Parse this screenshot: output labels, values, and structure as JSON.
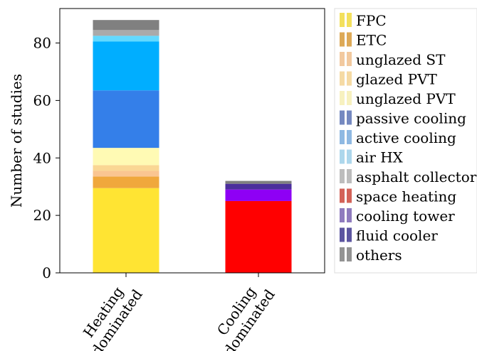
{
  "chart_data": {
    "type": "bar",
    "stacked": true,
    "categories": [
      "Heating\ndominated",
      "Cooling\ndominated"
    ],
    "ylabel": "Number of studies",
    "xlabel": "",
    "ylim": [
      0,
      92
    ],
    "yticks": [
      0,
      20,
      40,
      60,
      80
    ],
    "grid": false,
    "legend_position": "right",
    "series": [
      {
        "name": "FPC",
        "color": "#FFE433",
        "values": [
          29.5,
          0
        ]
      },
      {
        "name": "ETC",
        "color": "#F0A83C",
        "values": [
          4,
          0
        ]
      },
      {
        "name": "unglazed ST",
        "color": "#FAC591",
        "values": [
          2,
          0
        ]
      },
      {
        "name": "glazed PVT",
        "color": "#FAD794",
        "values": [
          2,
          0
        ]
      },
      {
        "name": "unglazed PVT",
        "color": "#FFFAB4",
        "values": [
          6,
          0
        ]
      },
      {
        "name": "passive cooling",
        "color": "#347FE9",
        "values": [
          20,
          0
        ]
      },
      {
        "name": "active cooling",
        "color": "#00AEFF",
        "values": [
          17,
          0
        ]
      },
      {
        "name": "air HX",
        "color": "#63D9FF",
        "values": [
          2,
          0
        ]
      },
      {
        "name": "asphalt collector",
        "color": "#AAAAAA",
        "values": [
          2,
          0
        ]
      },
      {
        "name": "space heating",
        "color": "#FF0000",
        "values": [
          0,
          25
        ]
      },
      {
        "name": "cooling tower",
        "color": "#8E00F5",
        "values": [
          0,
          4
        ]
      },
      {
        "name": "fluid cooler",
        "color": "#4B2E9C",
        "values": [
          0,
          2
        ]
      },
      {
        "name": "others",
        "color": "#808080",
        "values": [
          3.5,
          1
        ]
      }
    ],
    "legend_entries": [
      {
        "name": "FPC",
        "color": "#F3E05C"
      },
      {
        "name": "ETC",
        "color": "#DDA957"
      },
      {
        "name": "unglazed ST",
        "color": "#F2C99F"
      },
      {
        "name": "glazed PVT",
        "color": "#F5DAA4"
      },
      {
        "name": "unglazed PVT",
        "color": "#F7F1BF"
      },
      {
        "name": "passive cooling",
        "color": "#7589C0"
      },
      {
        "name": "active cooling",
        "color": "#8FB9E2"
      },
      {
        "name": "air HX",
        "color": "#ADD7EC"
      },
      {
        "name": "asphalt collector",
        "color": "#BDBDBD"
      },
      {
        "name": "space heating",
        "color": "#D36258"
      },
      {
        "name": "cooling tower",
        "color": "#8F7BBE"
      },
      {
        "name": "fluid cooler",
        "color": "#5C55A0"
      },
      {
        "name": "others",
        "color": "#939393"
      }
    ]
  }
}
